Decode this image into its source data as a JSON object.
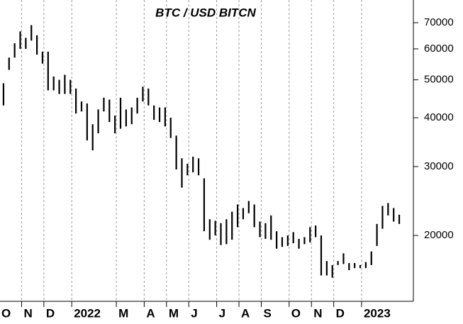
{
  "chart_data": {
    "type": "range",
    "title": "BTC / USD BITCN",
    "categories": [
      "O",
      null,
      null,
      null,
      "N",
      null,
      null,
      null,
      "D",
      null,
      null,
      null,
      null,
      "2022",
      null,
      null,
      null,
      null,
      null,
      null,
      null,
      "M",
      null,
      null,
      null,
      null,
      "A",
      null,
      null,
      null,
      "M",
      null,
      null,
      null,
      "J",
      null,
      null,
      null,
      null,
      "J",
      null,
      null,
      null,
      "A",
      null,
      null,
      null,
      "S",
      null,
      null,
      null,
      null,
      "O",
      null,
      null,
      null,
      "N",
      null,
      null,
      null,
      "D",
      null,
      null,
      null,
      null,
      "2023",
      null,
      null,
      null,
      null,
      null,
      null
    ],
    "high": [
      49000,
      57000,
      62000,
      66500,
      64000,
      69000,
      65000,
      59000,
      59000,
      51000,
      50000,
      51500,
      50000,
      47500,
      44000,
      43500,
      38500,
      42000,
      45000,
      44500,
      40500,
      45000,
      42000,
      42500,
      45000,
      48000,
      47500,
      43000,
      42500,
      42500,
      40000,
      36000,
      31500,
      30500,
      31800,
      31500,
      28000,
      22000,
      21800,
      21500,
      22000,
      23000,
      24000,
      23500,
      24500,
      24000,
      21700,
      21500,
      22500,
      20500,
      19800,
      20000,
      20400,
      19600,
      19800,
      21000,
      21200,
      20000,
      17200,
      16800,
      17200,
      18000,
      17000,
      17000,
      16800,
      17100,
      18200,
      21400,
      23800,
      24200,
      23500,
      22600
    ],
    "low": [
      43000,
      53000,
      57000,
      60000,
      60000,
      63000,
      58000,
      55000,
      47000,
      47000,
      46000,
      46000,
      46000,
      41000,
      41500,
      35000,
      33000,
      36500,
      41500,
      39000,
      36500,
      37500,
      38000,
      38500,
      41000,
      44000,
      43000,
      39500,
      39000,
      38000,
      35500,
      29500,
      26500,
      28500,
      29000,
      28500,
      20500,
      19500,
      20000,
      18900,
      19000,
      19500,
      21000,
      22000,
      22800,
      21000,
      19800,
      19600,
      19500,
      18500,
      18700,
      18800,
      19100,
      18500,
      19000,
      19200,
      19800,
      15800,
      15800,
      15600,
      16800,
      16900,
      16300,
      16500,
      16500,
      16500,
      16800,
      18800,
      20800,
      22500,
      21700,
      21400
    ],
    "color": "#000000",
    "ylim": [
      13570,
      80000
    ],
    "log_scale": true,
    "yticks": [
      20000,
      30000,
      40000,
      50000,
      60000,
      70000
    ],
    "grid": true
  }
}
